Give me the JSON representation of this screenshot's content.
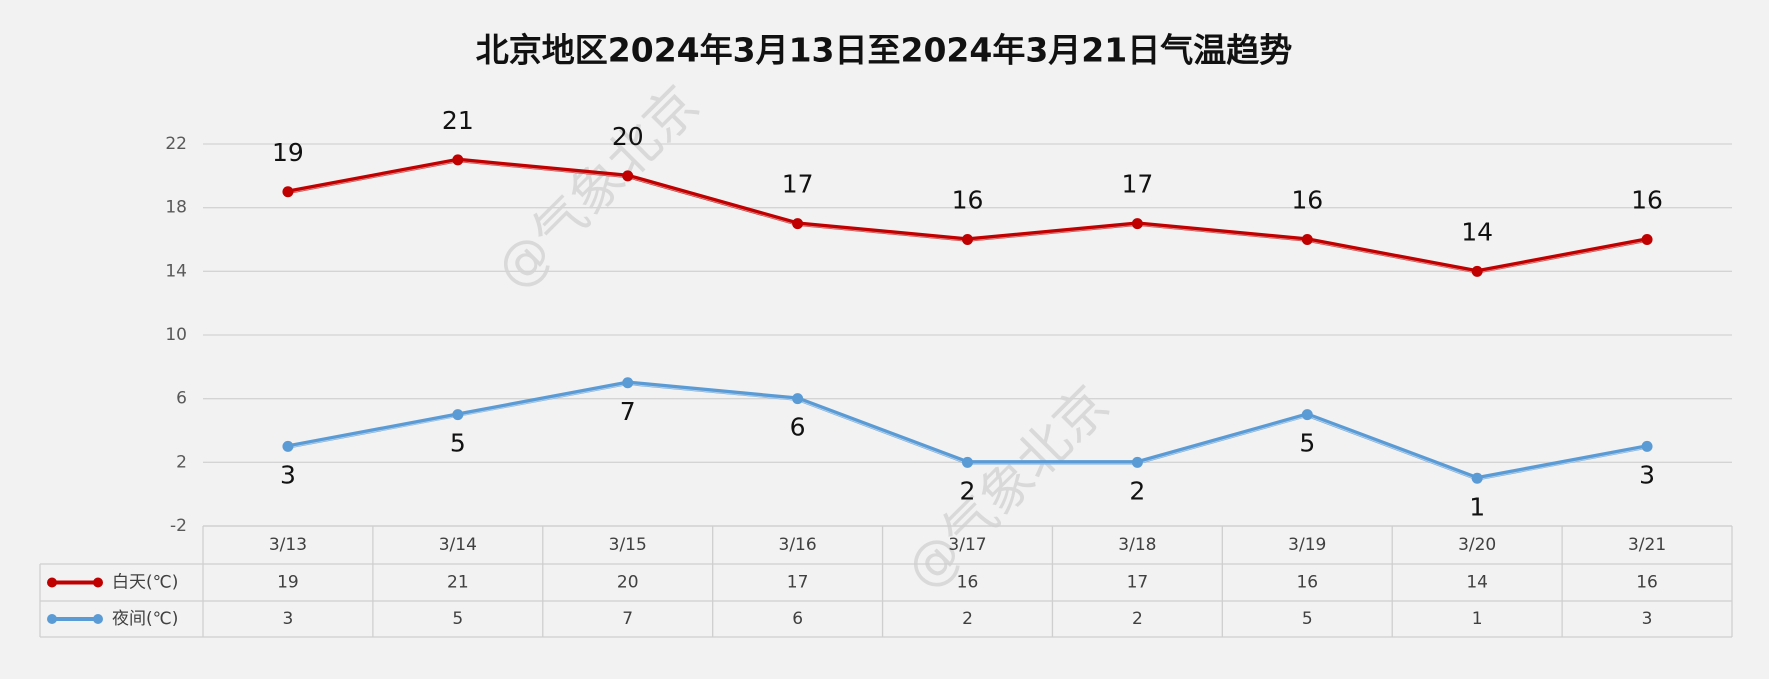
{
  "chart_data": {
    "type": "line",
    "title": "北京地区2024年3月13日至2024年3月21日气温趋势",
    "watermark": "@气象北京",
    "categories": [
      "3/13",
      "3/14",
      "3/15",
      "3/16",
      "3/17",
      "3/18",
      "3/19",
      "3/20",
      "3/21"
    ],
    "series": [
      {
        "name": "白天(℃)",
        "color": "#c00000",
        "values": [
          19,
          21,
          20,
          17,
          16,
          17,
          16,
          14,
          16
        ],
        "label_position": "above"
      },
      {
        "name": "夜间(℃)",
        "color": "#5b9bd5",
        "values": [
          3,
          5,
          7,
          6,
          2,
          2,
          5,
          1,
          3
        ],
        "label_position": "below"
      }
    ],
    "ylim": [
      -2,
      22
    ],
    "yticks": [
      -2,
      2,
      6,
      10,
      14,
      18,
      22
    ],
    "grid": true,
    "data_table": true
  }
}
